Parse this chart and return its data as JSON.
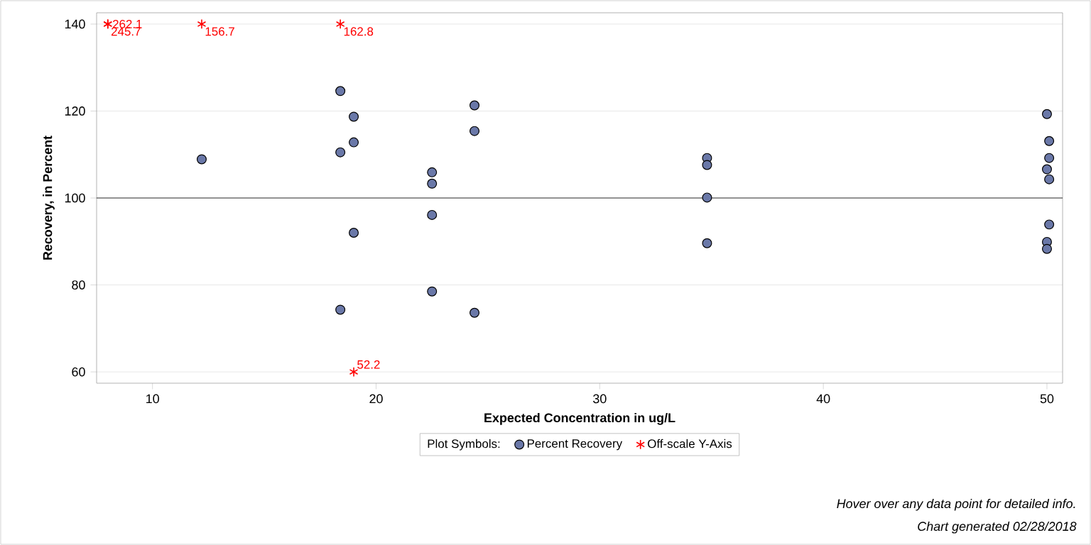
{
  "chart_data": {
    "type": "scatter",
    "xlabel": "Expected Concentration in ug/L",
    "ylabel": "Recovery, in Percent",
    "legend_title": "Plot Symbols:",
    "series": [
      {
        "name": "Percent Recovery",
        "color": "#6a78a8",
        "marker": "circle",
        "x": [
          12.2,
          18.4,
          19.0,
          19.0,
          18.4,
          19.0,
          18.4,
          22.5,
          22.5,
          22.5,
          22.5,
          24.4,
          24.4,
          24.4,
          34.8,
          34.8,
          34.8,
          34.8,
          50.0,
          50.0,
          50.0,
          50.0,
          50.1,
          50.1,
          50.1,
          50.1
        ],
        "values": [
          108.9,
          124.6,
          118.7,
          112.8,
          110.5,
          92.0,
          74.3,
          105.9,
          103.3,
          96.1,
          78.5,
          121.3,
          115.4,
          73.6,
          109.2,
          107.6,
          100.1,
          89.6,
          119.3,
          106.6,
          89.9,
          88.3,
          113.1,
          109.2,
          104.3,
          93.9
        ]
      },
      {
        "name": "Off-scale Y-Axis",
        "color": "#ff0000",
        "marker": "cross",
        "x": [
          8.0,
          8.0,
          12.2,
          18.4,
          19.0
        ],
        "values": [
          140,
          140,
          140,
          140,
          60
        ]
      }
    ],
    "ref_lines": [
      {
        "axis": "y",
        "value": 100,
        "color": "#000000"
      }
    ],
    "xlim": [
      7.5,
      50.7
    ],
    "ylim": [
      57.4,
      142.6
    ],
    "xticks": [
      10,
      20,
      30,
      40,
      50
    ],
    "yticks": [
      60,
      80,
      100,
      120,
      140
    ],
    "grid": "y",
    "legend": "bottom",
    "annotations": [
      {
        "text": "262.1",
        "x": 8.0,
        "y": 140
      },
      {
        "text": "245.7",
        "x": 8.0,
        "y": 140
      },
      {
        "text": "156.7",
        "x": 12.2,
        "y": 140
      },
      {
        "text": "162.8",
        "x": 18.4,
        "y": 140
      },
      {
        "text": "52.2",
        "x": 19.0,
        "y": 60
      },
      "Hover over any data point for detailed info.",
      "Chart generated 02/28/2018"
    ]
  }
}
